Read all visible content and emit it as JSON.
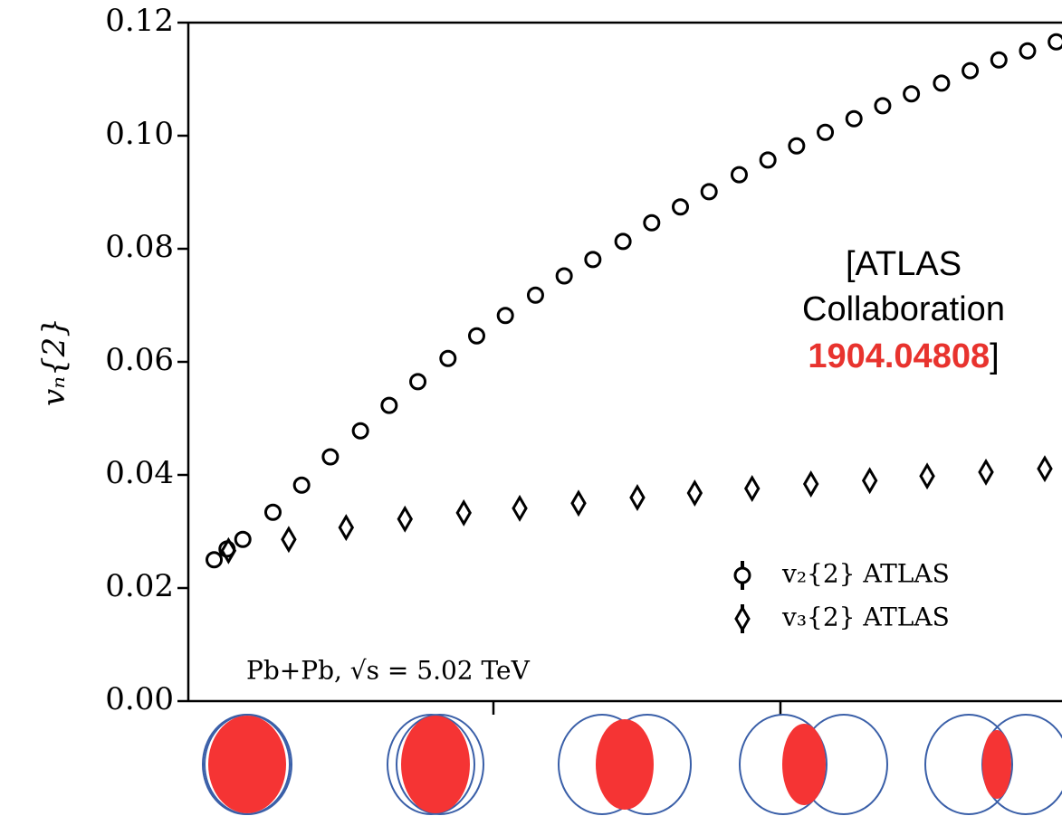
{
  "chart_data": {
    "type": "scatter",
    "ylabel": "vₙ{2}",
    "ylim": [
      0,
      0.12
    ],
    "yticks": [
      {
        "value": 0,
        "label": "0.00"
      },
      0.02,
      0.04,
      0.06,
      0.08,
      {
        "value": 0.1,
        "label": "0.10"
      },
      0.12
    ],
    "xlim": [
      -1.3,
      59.6
    ],
    "series": [
      {
        "name": "v₂{2} ATLAS",
        "marker": "circle",
        "color": "#000000",
        "x": [
          0.5,
          1.4,
          2.5,
          4.6,
          6.6,
          8.6,
          10.7,
          12.7,
          14.7,
          16.8,
          18.8,
          20.8,
          22.9,
          24.9,
          26.9,
          29.0,
          31.0,
          33.0,
          35.0,
          37.1,
          39.1,
          41.1,
          43.1,
          45.1,
          47.1,
          49.1,
          51.2,
          53.2,
          55.2,
          57.2,
          59.2
        ],
        "values": [
          0.025,
          0.0269,
          0.0286,
          0.0334,
          0.0382,
          0.0432,
          0.0478,
          0.0523,
          0.0565,
          0.0606,
          0.0646,
          0.0682,
          0.0718,
          0.0752,
          0.0781,
          0.0813,
          0.0846,
          0.0874,
          0.0901,
          0.0931,
          0.0957,
          0.0982,
          0.1006,
          0.103,
          0.1053,
          0.1074,
          0.1093,
          0.1115,
          0.1134,
          0.115,
          0.1166
        ]
      },
      {
        "name": "v₃{2} ATLAS",
        "marker": "diamond",
        "color": "#000000",
        "x": [
          1.5,
          5.7,
          9.7,
          13.8,
          17.9,
          21.8,
          25.9,
          30.0,
          34.0,
          38.0,
          42.1,
          46.2,
          50.2,
          54.3,
          58.4
        ],
        "values": [
          0.0266,
          0.0286,
          0.0307,
          0.0322,
          0.0333,
          0.0341,
          0.035,
          0.036,
          0.0368,
          0.0376,
          0.0384,
          0.039,
          0.0398,
          0.0405,
          0.0411
        ]
      }
    ],
    "system_label": "Pb+Pb, √s = 5.02 TeV",
    "annotation_lines": [
      "[ATLAS",
      "Collaboration"
    ],
    "annotation_ref": "1904.04808",
    "annotation_close": "]"
  }
}
